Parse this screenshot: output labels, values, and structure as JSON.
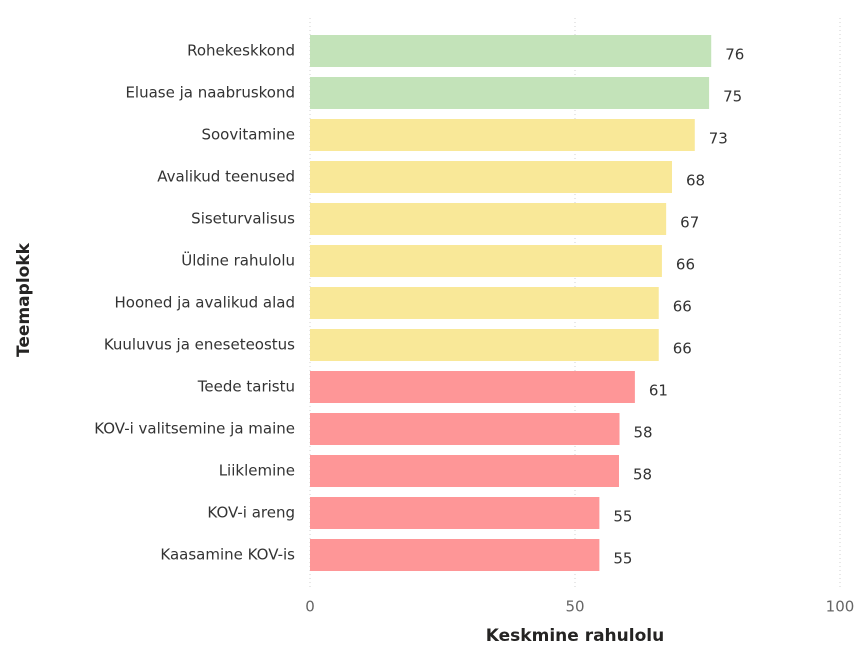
{
  "chart_data": {
    "type": "barh",
    "categories": [
      "Rohekeskkond",
      "Eluase ja naabruskond",
      "Soovitamine",
      "Avalikud teenused",
      "Siseturvalisus",
      "Üldine rahulolu",
      "Hooned ja avalikud alad",
      "Kuuluvus ja eneseteostus",
      "Teede taristu",
      "KOV-i valitsemine ja maine",
      "Liiklemine",
      "KOV-i areng",
      "Kaasamine KOV-is"
    ],
    "values": [
      75.7,
      75.3,
      72.6,
      68.3,
      67.2,
      66.4,
      65.8,
      65.8,
      61.3,
      58.4,
      58.3,
      54.6,
      54.6
    ],
    "value_labels": [
      "76",
      "75",
      "73",
      "68",
      "67",
      "66",
      "66",
      "66",
      "61",
      "58",
      "58",
      "55",
      "55"
    ],
    "colors": [
      "#c3e3b9",
      "#c3e3b9",
      "#f9e898",
      "#f9e898",
      "#f9e898",
      "#f9e898",
      "#f9e898",
      "#f9e898",
      "#fe9697",
      "#fe9697",
      "#fe9697",
      "#fe9697",
      "#fe9697"
    ],
    "xlabel": "Keskmine rahulolu",
    "ylabel": "Teemaplokk",
    "xlim": [
      0,
      100
    ],
    "xticks": [
      0,
      50,
      100
    ],
    "grid": true
  }
}
